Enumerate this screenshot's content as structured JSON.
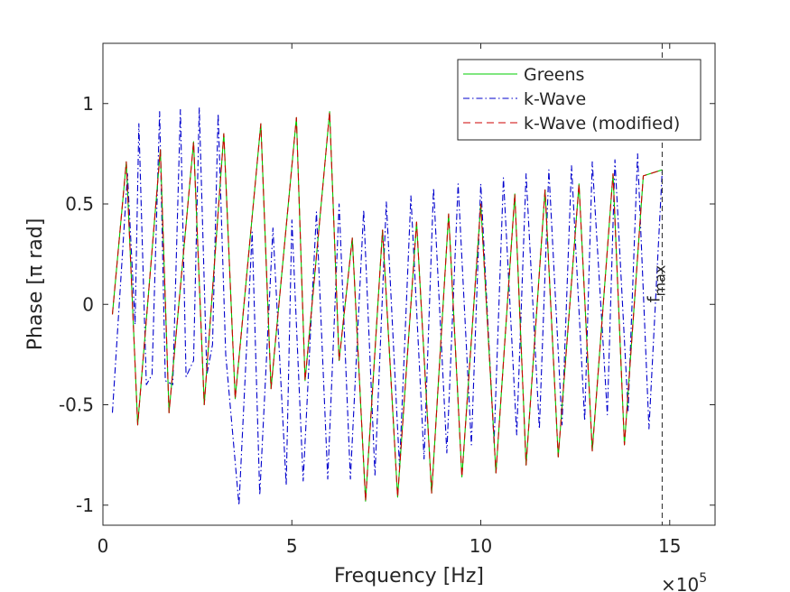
{
  "chart_data": {
    "type": "line",
    "title": "",
    "xlabel": "Frequency [Hz]",
    "ylabel": "Phase [π rad]",
    "x_multiplier": "×10",
    "x_multiplier_exp": "5",
    "xlim": [
      0,
      16.2
    ],
    "ylim": [
      -1.1,
      1.3
    ],
    "xticks": [
      0,
      5,
      10,
      15
    ],
    "xtick_labels": [
      "0",
      "5",
      "10",
      "15"
    ],
    "yticks": [
      -1,
      -0.5,
      0,
      0.5,
      1
    ],
    "ytick_labels": [
      "-1",
      "-0.5",
      "0",
      "0.5",
      "1"
    ],
    "grid": false,
    "legend_position": "top-right",
    "fmax": {
      "x": 14.8,
      "label": "f",
      "label_sub": "max"
    },
    "series": [
      {
        "name": "Greens",
        "color": "#00cc00",
        "style": "solid",
        "x": [
          0.25,
          0.62,
          0.92,
          1.52,
          1.75,
          2.4,
          2.68,
          3.2,
          3.5,
          4.18,
          4.45,
          5.12,
          5.35,
          6.0,
          6.25,
          6.6,
          6.95,
          7.4,
          7.8,
          8.3,
          8.7,
          9.15,
          9.5,
          10.0,
          10.4,
          10.9,
          11.2,
          11.7,
          12.05,
          12.6,
          12.95,
          13.5,
          13.8,
          14.3,
          14.8
        ],
        "y": [
          -0.05,
          0.71,
          -0.6,
          0.77,
          -0.54,
          0.81,
          -0.5,
          0.85,
          -0.47,
          0.9,
          -0.42,
          0.93,
          -0.38,
          0.96,
          -0.28,
          0.33,
          -0.98,
          0.37,
          -0.96,
          0.41,
          -0.94,
          0.45,
          -0.86,
          0.5,
          -0.84,
          0.55,
          -0.8,
          0.57,
          -0.76,
          0.6,
          -0.73,
          0.65,
          -0.7,
          0.64,
          0.67
        ]
      },
      {
        "name": "k-Wave",
        "color": "#0000cc",
        "style": "dashdot",
        "x": [
          0.25,
          0.65,
          0.85,
          0.95,
          1.15,
          1.3,
          1.5,
          1.65,
          1.85,
          2.05,
          2.2,
          2.4,
          2.55,
          2.75,
          2.9,
          3.05,
          3.25,
          3.6,
          3.95,
          4.15,
          4.5,
          4.85,
          5.0,
          5.3,
          5.65,
          5.95,
          6.25,
          6.55,
          6.9,
          7.2,
          7.5,
          7.85,
          8.15,
          8.5,
          8.75,
          9.1,
          9.4,
          9.75,
          10.0,
          10.35,
          10.6,
          10.95,
          11.2,
          11.55,
          11.8,
          12.15,
          12.4,
          12.75,
          12.95,
          13.35,
          13.55,
          13.9,
          14.15,
          14.45,
          14.8
        ],
        "y": [
          -0.54,
          0.65,
          -0.1,
          0.9,
          -0.4,
          -0.35,
          0.96,
          -0.38,
          -0.4,
          0.97,
          -0.36,
          -0.28,
          0.98,
          -0.35,
          -0.2,
          0.95,
          -0.25,
          -1.0,
          0.36,
          -0.95,
          0.38,
          -0.9,
          0.42,
          -0.88,
          0.46,
          -0.87,
          0.5,
          -0.87,
          0.47,
          -0.85,
          0.51,
          -0.81,
          0.54,
          -0.77,
          0.58,
          -0.74,
          0.6,
          -0.7,
          0.6,
          -0.69,
          0.63,
          -0.65,
          0.65,
          -0.62,
          0.67,
          -0.6,
          0.69,
          -0.58,
          0.71,
          -0.55,
          0.72,
          -0.53,
          0.75,
          -0.62,
          0.66
        ]
      },
      {
        "name": "k-Wave (modified)",
        "color": "#cc0000",
        "style": "dashed",
        "x": [
          0.25,
          0.62,
          0.92,
          1.52,
          1.75,
          2.4,
          2.68,
          3.2,
          3.5,
          4.18,
          4.45,
          5.12,
          5.35,
          6.0,
          6.25,
          6.6,
          6.95,
          7.4,
          7.8,
          8.3,
          8.7,
          9.15,
          9.5,
          10.0,
          10.4,
          10.9,
          11.2,
          11.7,
          12.05,
          12.6,
          12.95,
          13.5,
          13.8,
          14.3,
          14.8
        ],
        "y": [
          -0.05,
          0.71,
          -0.6,
          0.77,
          -0.54,
          0.81,
          -0.5,
          0.85,
          -0.47,
          0.9,
          -0.42,
          0.93,
          -0.38,
          0.96,
          -0.28,
          0.33,
          -0.98,
          0.37,
          -0.96,
          0.41,
          -0.94,
          0.45,
          -0.86,
          0.5,
          -0.84,
          0.55,
          -0.8,
          0.57,
          -0.76,
          0.6,
          -0.73,
          0.65,
          -0.7,
          0.64,
          0.67
        ]
      }
    ]
  }
}
